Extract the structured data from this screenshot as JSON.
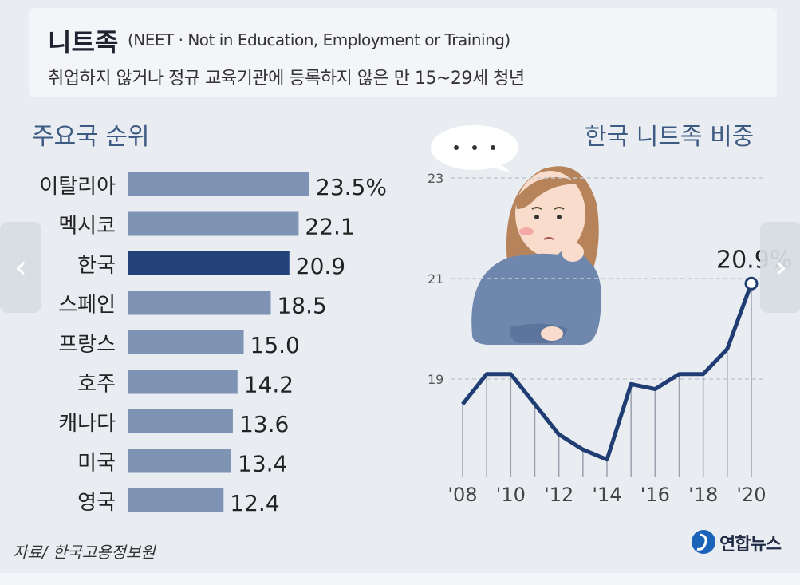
{
  "header": {
    "title": "니트족",
    "subtitle": "(NEET · Not in Education, Employment or Training)",
    "description": "취업하지 않거나 정규 교육기관에 등록하지 않은 만 15~29세 청년"
  },
  "sections": {
    "left_title": "주요국 순위",
    "right_title": "한국 니트족 비중"
  },
  "footer": {
    "source": "자료/ 한국고용정보원",
    "logo": "연합뉴스"
  },
  "colors": {
    "bar": "#7f93b5",
    "bar_highlight": "#24427a",
    "line": "#1f3d73",
    "gridline": "#c4c9d1"
  },
  "chart_data": [
    {
      "type": "bar",
      "orientation": "horizontal",
      "title": "주요국 순위",
      "categories": [
        "이탈리아",
        "멕시코",
        "한국",
        "스페인",
        "프랑스",
        "호주",
        "캐나다",
        "미국",
        "영국"
      ],
      "values": [
        23.5,
        22.1,
        20.9,
        18.5,
        15.0,
        14.2,
        13.6,
        13.4,
        12.4
      ],
      "value_labels": [
        "23.5%",
        "22.1",
        "20.9",
        "18.5",
        "15.0",
        "14.2",
        "13.6",
        "13.4",
        "12.4"
      ],
      "highlight": "한국"
    },
    {
      "type": "line",
      "title": "한국 니트족 비중",
      "x": [
        "'08",
        "'09",
        "'10",
        "'11",
        "'12",
        "'13",
        "'14",
        "'15",
        "'16",
        "'17",
        "'18",
        "'19",
        "'20"
      ],
      "xtick_labels": [
        "'08",
        "'10",
        "'12",
        "'14",
        "'16",
        "'18",
        "'20"
      ],
      "y": [
        18.5,
        19.1,
        19.1,
        18.5,
        17.9,
        17.6,
        17.4,
        18.9,
        18.8,
        19.1,
        19.1,
        19.6,
        20.9
      ],
      "yticks": [
        19,
        21,
        23
      ],
      "ylim": [
        17,
        23.5
      ],
      "grid": true,
      "annotation": "20.9%"
    }
  ]
}
